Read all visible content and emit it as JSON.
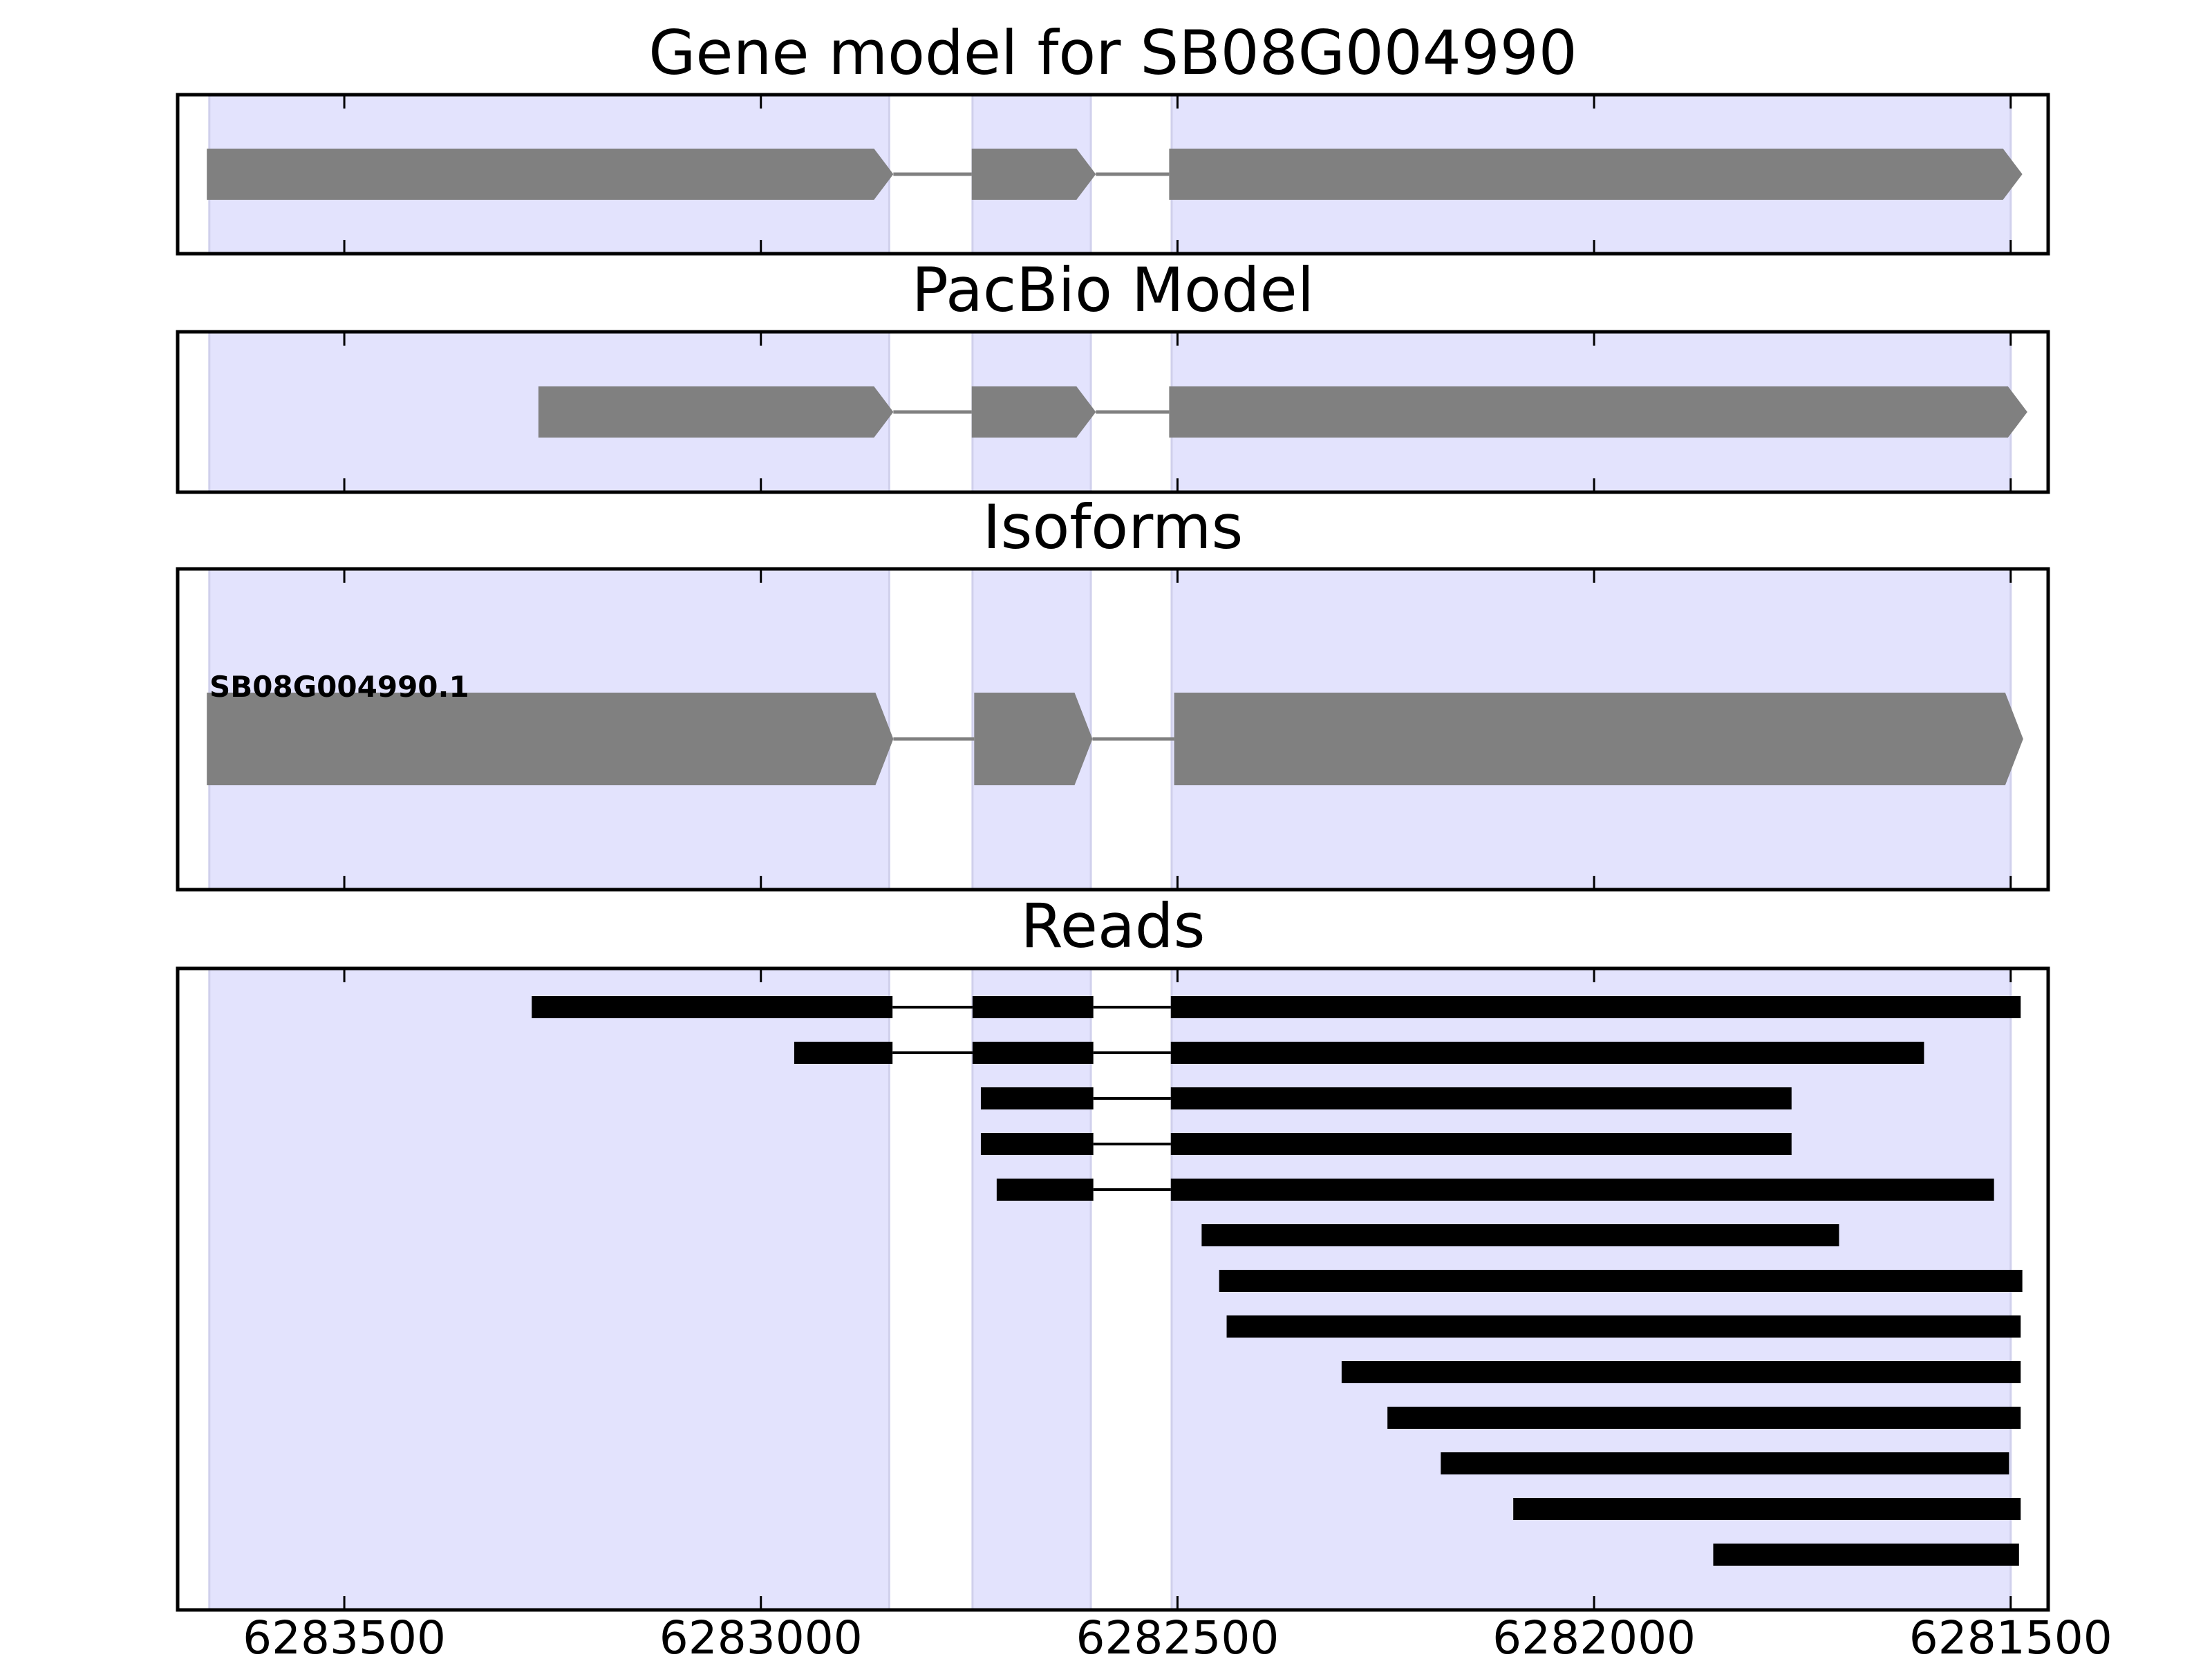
{
  "chart_data": {
    "type": "gene-track",
    "x_axis": {
      "reversed": true,
      "xlim": [
        6283700,
        6281455
      ],
      "ticks": [
        6283500,
        6283000,
        6282500,
        6282000,
        6281500
      ],
      "tick_labels": [
        "6283500",
        "6283000",
        "6282500",
        "6282000",
        "6281500"
      ]
    },
    "shaded_regions": [
      [
        6283662,
        6282846
      ],
      [
        6282746,
        6282604
      ],
      [
        6282507,
        6281500
      ]
    ],
    "colors": {
      "shade": "#e3e3fd",
      "shade_edge": "#d0d0ec",
      "feature": "#808080",
      "read": "#000000",
      "frame": "#000000"
    },
    "panels": [
      {
        "id": "gene-model",
        "title": "Gene model for SB08G004990",
        "features": [
          {
            "kind": "exon",
            "start": 6283665,
            "end": 6282841,
            "strand": "-"
          },
          {
            "kind": "exon",
            "start": 6282747,
            "end": 6282598,
            "strand": "-"
          },
          {
            "kind": "exon",
            "start": 6282510,
            "end": 6281486,
            "strand": "-"
          }
        ]
      },
      {
        "id": "pacbio-model",
        "title": "PacBio Model",
        "features": [
          {
            "kind": "exon",
            "start": 6283267,
            "end": 6282841,
            "strand": "-"
          },
          {
            "kind": "exon",
            "start": 6282747,
            "end": 6282598,
            "strand": "-"
          },
          {
            "kind": "exon",
            "start": 6282510,
            "end": 6281480,
            "strand": "-"
          }
        ]
      },
      {
        "id": "isoforms",
        "title": "Isoforms",
        "isoforms": [
          {
            "name": "SB08G004990.1",
            "exons": [
              [
                6283665,
                6282841
              ],
              [
                6282744,
                6282602
              ],
              [
                6282504,
                6281485
              ]
            ]
          }
        ]
      },
      {
        "id": "reads",
        "title": "Reads",
        "reads": [
          [
            [
              6283275,
              6282842
            ],
            [
              6282746,
              6282601
            ],
            [
              6282508,
              6281488
            ]
          ],
          [
            [
              6282960,
              6282842
            ],
            [
              6282746,
              6282601
            ],
            [
              6282508,
              6281604
            ]
          ],
          [
            [
              6282736,
              6282601
            ],
            [
              6282508,
              6281763
            ]
          ],
          [
            [
              6282736,
              6282601
            ],
            [
              6282508,
              6281763
            ]
          ],
          [
            [
              6282717,
              6282601
            ],
            [
              6282508,
              6281520
            ]
          ],
          [
            [
              6282471,
              6281706
            ]
          ],
          [
            [
              6282450,
              6281486
            ]
          ],
          [
            [
              6282441,
              6281488
            ]
          ],
          [
            [
              6282303,
              6281488
            ]
          ],
          [
            [
              6282248,
              6281488
            ]
          ],
          [
            [
              6282184,
              6281502
            ]
          ],
          [
            [
              6282097,
              6281488
            ]
          ],
          [
            [
              6281857,
              6281490
            ]
          ]
        ]
      }
    ]
  }
}
